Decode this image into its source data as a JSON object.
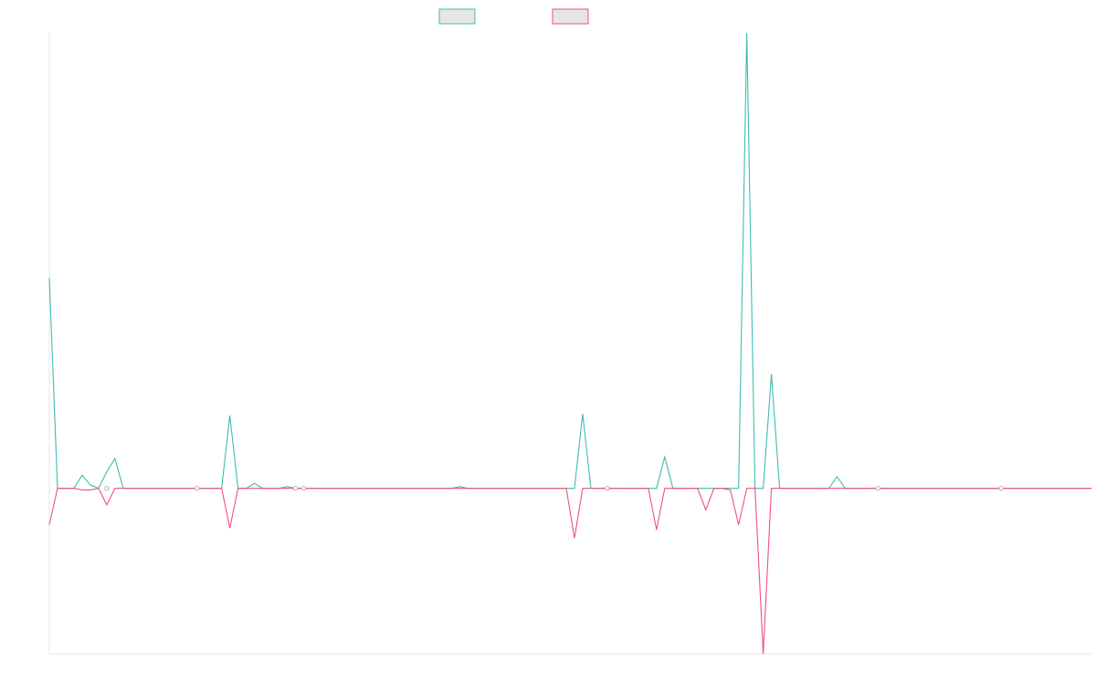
{
  "chart_data": {
    "type": "line",
    "title": "",
    "xlabel": "",
    "ylabel": "",
    "x_count": 128,
    "ylim": [
      -100,
      275
    ],
    "zero": 0,
    "grid": false,
    "legend": {
      "position": "top-center"
    },
    "series": [
      {
        "color": "#3cbcb4",
        "legend_fill": "#e6e6e6",
        "values": [
          127,
          0,
          0,
          0,
          8,
          2,
          0,
          10,
          18,
          0,
          0,
          0,
          0,
          0,
          0,
          0,
          0,
          0,
          0,
          0,
          0,
          0,
          44,
          0,
          0,
          3,
          0,
          0,
          0,
          1,
          0,
          0,
          0,
          0,
          0,
          0,
          0,
          0,
          0,
          0,
          0,
          0,
          0,
          0,
          0,
          0,
          0,
          0,
          0,
          0,
          1,
          0,
          0,
          0,
          0,
          0,
          0,
          0,
          0,
          0,
          0,
          0,
          0,
          0,
          0,
          45,
          0,
          0,
          0,
          0,
          0,
          0,
          0,
          0,
          0,
          19,
          0,
          0,
          0,
          0,
          0,
          0,
          0,
          0,
          0,
          275,
          0,
          0,
          69,
          0,
          0,
          0,
          0,
          0,
          0,
          0,
          7,
          0,
          0,
          0,
          0,
          0,
          0,
          0,
          0,
          0,
          0,
          0,
          0,
          0,
          0,
          0,
          0,
          0,
          0,
          0,
          0,
          0,
          0,
          0,
          0,
          0,
          0,
          0,
          0,
          0,
          0,
          0
        ]
      },
      {
        "color": "#f0507a",
        "legend_fill": "#e6e6e6",
        "values": [
          -22,
          0,
          0,
          0,
          -1,
          -1,
          0,
          -10,
          0,
          0,
          0,
          0,
          0,
          0,
          0,
          0,
          0,
          0,
          0,
          0,
          0,
          0,
          -24,
          0,
          0,
          0,
          0,
          0,
          0,
          0,
          0,
          0,
          0,
          0,
          0,
          0,
          0,
          0,
          0,
          0,
          0,
          0,
          0,
          0,
          0,
          0,
          0,
          0,
          0,
          0,
          0,
          0,
          0,
          0,
          0,
          0,
          0,
          0,
          0,
          0,
          0,
          0,
          0,
          0,
          -30,
          0,
          0,
          0,
          0,
          0,
          0,
          0,
          0,
          0,
          -25,
          0,
          0,
          0,
          0,
          0,
          -13,
          0,
          0,
          -1,
          -22,
          0,
          0,
          -100,
          0,
          0,
          0,
          0,
          0,
          0,
          0,
          0,
          0,
          0,
          0,
          0,
          0,
          0,
          0,
          0,
          0,
          0,
          0,
          0,
          0,
          0,
          0,
          0,
          0,
          0,
          0,
          0,
          0,
          0,
          0,
          0,
          0,
          0,
          0,
          0,
          0,
          0,
          0,
          0
        ]
      }
    ]
  }
}
